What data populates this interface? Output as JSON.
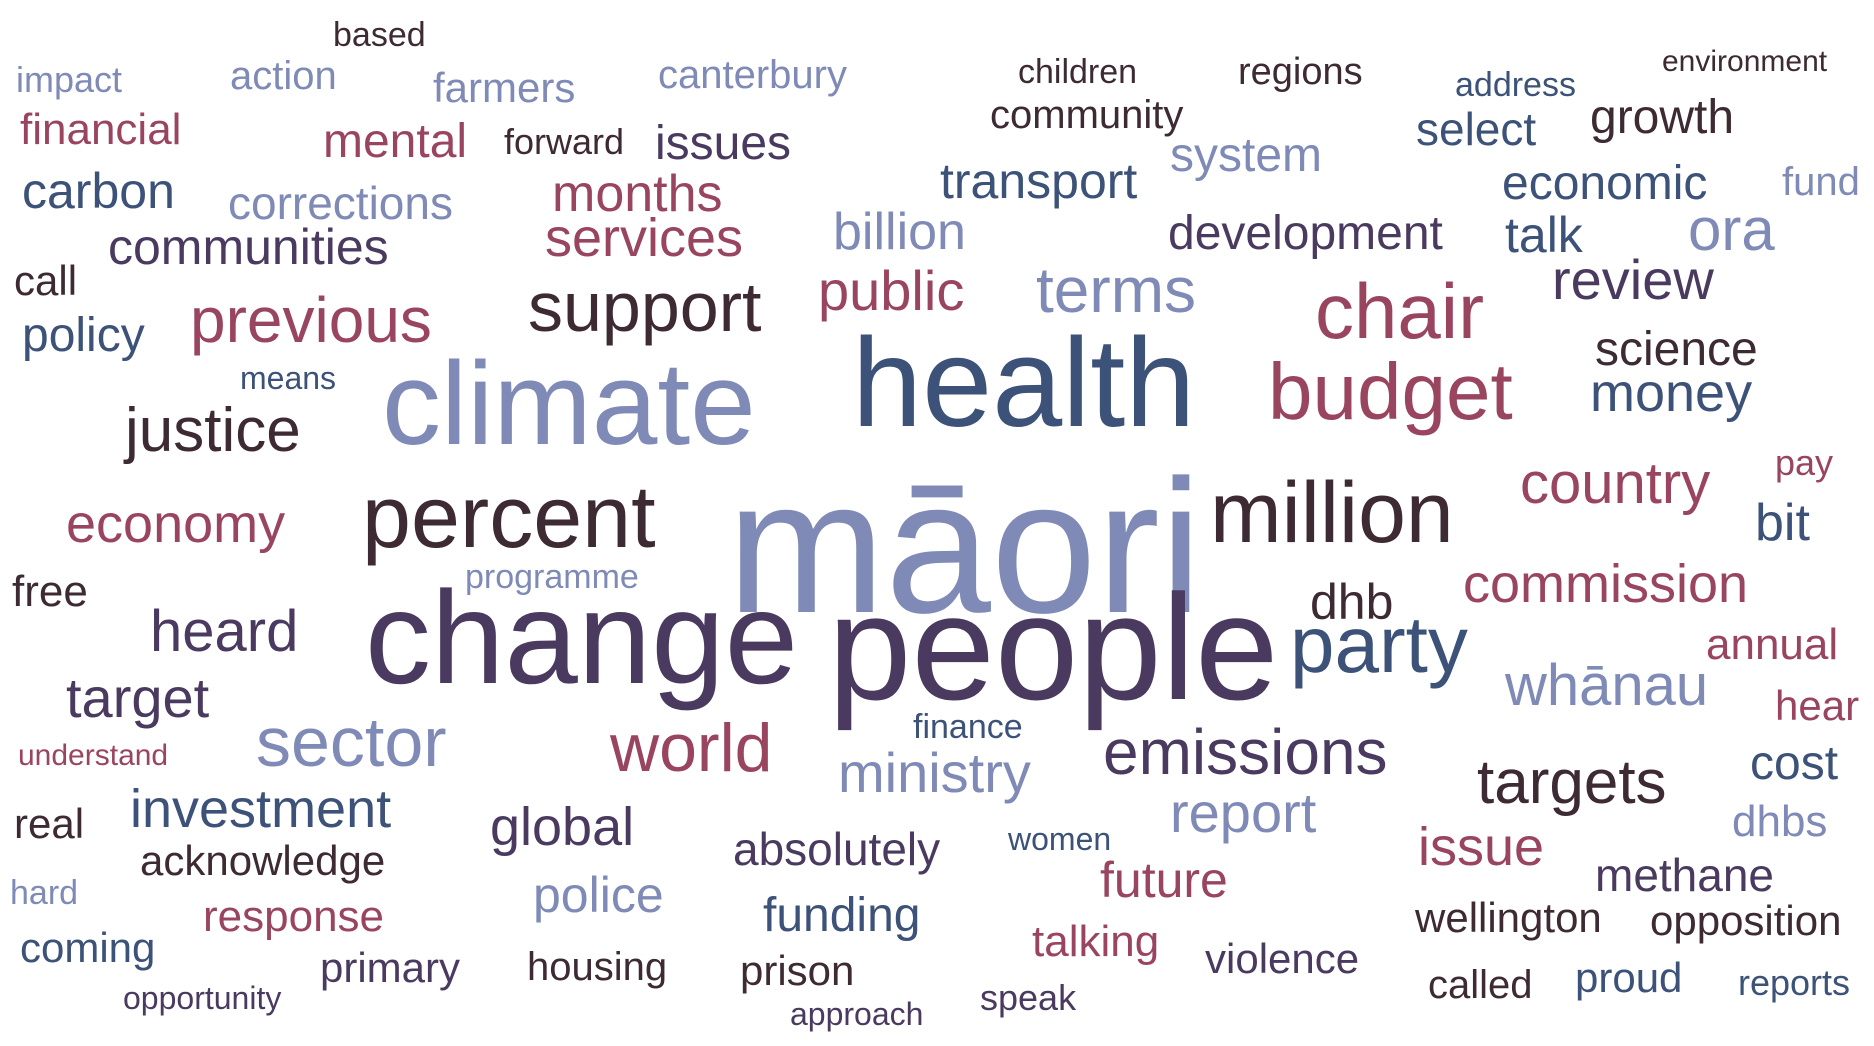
{
  "palette": {
    "dark": "#3d2a33",
    "rose": "#9a4560",
    "navy": "#3c5278",
    "lavender": "#7f8bb6",
    "plum": "#4a3a60"
  },
  "words": {
    "maori": "māori",
    "people": "people",
    "change": "change",
    "health": "health",
    "climate": "climate",
    "million": "million",
    "percent": "percent",
    "budget": "budget",
    "party": "party",
    "chair": "chair",
    "support": "support",
    "sector": "sector",
    "world": "world",
    "emissions": "emissions",
    "targets": "targets",
    "previous": "previous",
    "justice": "justice",
    "terms": "terms",
    "country": "country",
    "whanau": "whānau",
    "heard": "heard",
    "commission": "commission",
    "public": "public",
    "review": "review",
    "money": "money",
    "economy": "economy",
    "ministry": "ministry",
    "ora": "ora",
    "report": "report",
    "target": "target",
    "investment": "investment",
    "global": "global",
    "services": "services",
    "months": "months",
    "billion": "billion",
    "development": "development",
    "dhb": "dhb",
    "issue": "issue",
    "transport": "transport",
    "economic": "economic",
    "science": "science",
    "communities": "communities",
    "carbon": "carbon",
    "mental": "mental",
    "issues": "issues",
    "system": "system",
    "growth": "growth",
    "select": "select",
    "talk": "talk",
    "police": "police",
    "absolutely": "absolutely",
    "funding": "funding",
    "future": "future",
    "methane": "methane",
    "cost": "cost",
    "corrections": "corrections",
    "financial": "financial",
    "policy": "policy",
    "response": "response",
    "acknowledge": "acknowledge",
    "community": "community",
    "annual": "annual",
    "bit": "bit",
    "opposition": "opposition",
    "wellington": "wellington",
    "talking": "talking",
    "violence": "violence",
    "proud": "proud",
    "dhbs": "dhbs",
    "primary": "primary",
    "coming": "coming",
    "canterbury": "canterbury",
    "farmers": "farmers",
    "action": "action",
    "housing": "housing",
    "prison": "prison",
    "called": "called",
    "hear": "hear",
    "real": "real",
    "free": "free",
    "regions": "regions",
    "forward": "forward",
    "call": "call",
    "fund": "fund",
    "reports": "reports",
    "speak": "speak",
    "finance": "finance",
    "programme": "programme",
    "pay": "pay",
    "address": "address",
    "children": "children",
    "impact": "impact",
    "environment": "environment",
    "based": "based",
    "means": "means",
    "women": "women",
    "approach": "approach",
    "hard": "hard",
    "understand": "understand",
    "opportunity": "opportunity"
  }
}
